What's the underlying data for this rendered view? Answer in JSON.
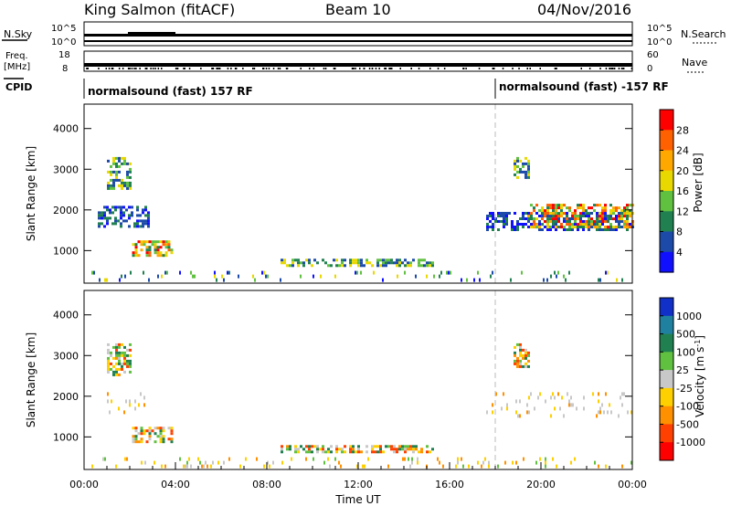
{
  "header": {
    "station": "King Salmon (fitACF)",
    "beam": "Beam 10",
    "date": "04/Nov/2016"
  },
  "top_panels": {
    "nsky_label": "N.Sky",
    "nsky_ticks": [
      "10^5",
      "10^0"
    ],
    "nsearch_label": "N.Search",
    "nsearch_ticks": [
      "10^5",
      "10^0"
    ],
    "freq_label": "Freq.",
    "freq_unit": "[MHz]",
    "freq_ticks": [
      "18",
      "8"
    ],
    "nave_label": "Nave",
    "nave_ticks": [
      "60",
      "0"
    ],
    "cpid_label": "CPID",
    "cpid_segments": [
      {
        "label": "normalsound (fast) 157 RF",
        "start_hour": 0
      },
      {
        "label": "normalsound (fast) -157 RF",
        "start_hour": 18
      }
    ]
  },
  "chart_data": [
    {
      "type": "heatmap",
      "panel": "power",
      "ylabel": "Slant Range [km]",
      "xlabel": "",
      "ylim": [
        200,
        4600
      ],
      "yticks": [
        "1000",
        "2000",
        "3000",
        "4000"
      ],
      "xlim": [
        0,
        24
      ],
      "colorbar_label": "Power [dB]",
      "colorbar_ticks": [
        "28",
        "24",
        "20",
        "16",
        "12",
        "8",
        "4"
      ],
      "colorbar_colors": [
        "#ff0000",
        "#ff6000",
        "#ffa800",
        "#e8d800",
        "#60c040",
        "#208050",
        "#1c4aa8",
        "#1010ff"
      ],
      "regions": [
        {
          "t0": 1.0,
          "t1": 2.0,
          "r0": 2500,
          "r1": 3300,
          "level": "mid"
        },
        {
          "t0": 0.6,
          "t1": 2.8,
          "r0": 1600,
          "r1": 2100,
          "level": "low"
        },
        {
          "t0": 2.1,
          "t1": 3.9,
          "r0": 850,
          "r1": 1250,
          "level": "high"
        },
        {
          "t0": 8.6,
          "t1": 15.3,
          "r0": 650,
          "r1": 800,
          "level": "mixed"
        },
        {
          "t0": 17.6,
          "t1": 24.0,
          "r0": 1500,
          "r1": 1950,
          "level": "low"
        },
        {
          "t0": 19.4,
          "t1": 24.0,
          "r0": 1550,
          "r1": 2150,
          "level": "high"
        },
        {
          "t0": 18.8,
          "t1": 19.5,
          "r0": 2800,
          "r1": 3300,
          "level": "mid"
        },
        {
          "t0": 0.0,
          "t1": 24.0,
          "r0": 250,
          "r1": 500,
          "level": "ground"
        }
      ]
    },
    {
      "type": "heatmap",
      "panel": "velocity",
      "ylabel": "Slant Range [km]",
      "xlabel": "Time UT",
      "ylim": [
        200,
        4600
      ],
      "yticks": [
        "1000",
        "2000",
        "3000",
        "4000"
      ],
      "xlim": [
        0,
        24
      ],
      "xticks": [
        "00:00",
        "04:00",
        "08:00",
        "12:00",
        "16:00",
        "20:00",
        "00:00"
      ],
      "colorbar_label": "Velocity [m s^-1]",
      "colorbar_ticks": [
        "1000",
        "500",
        "100",
        "25",
        "-25",
        "-100",
        "-500",
        "-1000"
      ],
      "colorbar_colors": [
        "#1030c8",
        "#2080a0",
        "#208050",
        "#60c040",
        "#c8c8c8",
        "#ffd000",
        "#ff9000",
        "#ff4000",
        "#ff0000"
      ],
      "regions": [
        {
          "t0": 1.0,
          "t1": 2.0,
          "r0": 2500,
          "r1": 3300,
          "level": "mixed"
        },
        {
          "t0": 0.6,
          "t1": 2.8,
          "r0": 1600,
          "r1": 2100,
          "level": "ground"
        },
        {
          "t0": 2.1,
          "t1": 3.9,
          "r0": 850,
          "r1": 1250,
          "level": "mixed"
        },
        {
          "t0": 8.6,
          "t1": 15.3,
          "r0": 650,
          "r1": 800,
          "level": "mixed"
        },
        {
          "t0": 17.6,
          "t1": 24.0,
          "r0": 1500,
          "r1": 2100,
          "level": "ground"
        },
        {
          "t0": 18.8,
          "t1": 19.5,
          "r0": 2700,
          "r1": 3300,
          "level": "mixed"
        },
        {
          "t0": 0.0,
          "t1": 24.0,
          "r0": 250,
          "r1": 500,
          "level": "yellow"
        }
      ]
    }
  ]
}
